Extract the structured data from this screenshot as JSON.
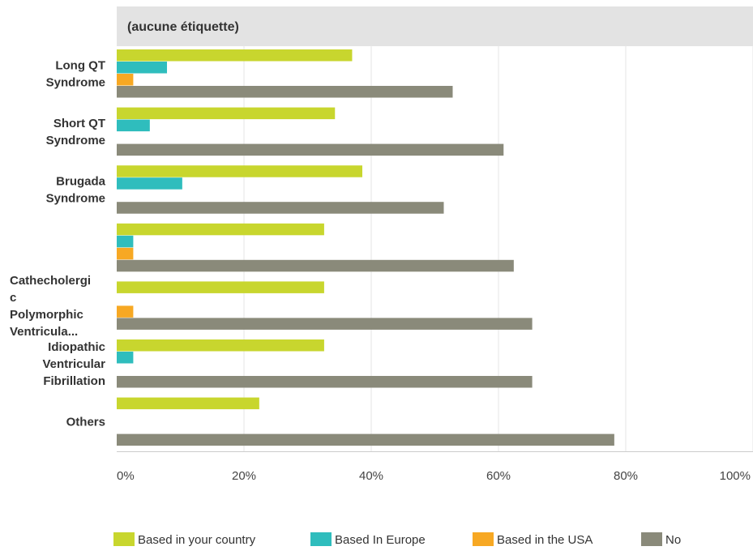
{
  "chart_data": {
    "type": "bar",
    "orientation": "horizontal",
    "title": "(aucune étiquette)",
    "xlabel": "",
    "ylabel": "",
    "xlim": [
      0,
      100
    ],
    "x_tick_labels": [
      "0%",
      "20%",
      "40%",
      "60%",
      "80%",
      "100%"
    ],
    "grid": true,
    "legend_position": "bottom",
    "categories": [
      [
        "Long QT",
        "Syndrome"
      ],
      [
        "Short QT",
        "Syndrome"
      ],
      [
        "Brugada",
        "Syndrome"
      ],
      [],
      [
        "Cathecholergi",
        "c",
        "Polymorphic",
        "Ventricula..."
      ],
      [
        "Idiopathic",
        "Ventricular",
        "Fibrillation"
      ],
      [
        "Others"
      ]
    ],
    "series": [
      {
        "name": "Based in your country",
        "color": "#c8d62e",
        "values": [
          37,
          34.3,
          38.6,
          32.6,
          32.6,
          32.6,
          22.4
        ]
      },
      {
        "name": "Based In Europe",
        "color": "#2fbdbd",
        "values": [
          7.9,
          5.2,
          10.3,
          2.6,
          0,
          2.6,
          0
        ]
      },
      {
        "name": "Based in the USA",
        "color": "#f7a823",
        "values": [
          2.6,
          0,
          0,
          2.6,
          2.6,
          0,
          0
        ]
      },
      {
        "name": "No",
        "color": "#8a8a7a",
        "values": [
          52.8,
          60.8,
          51.4,
          62.4,
          65.3,
          65.3,
          78.2
        ]
      }
    ]
  }
}
